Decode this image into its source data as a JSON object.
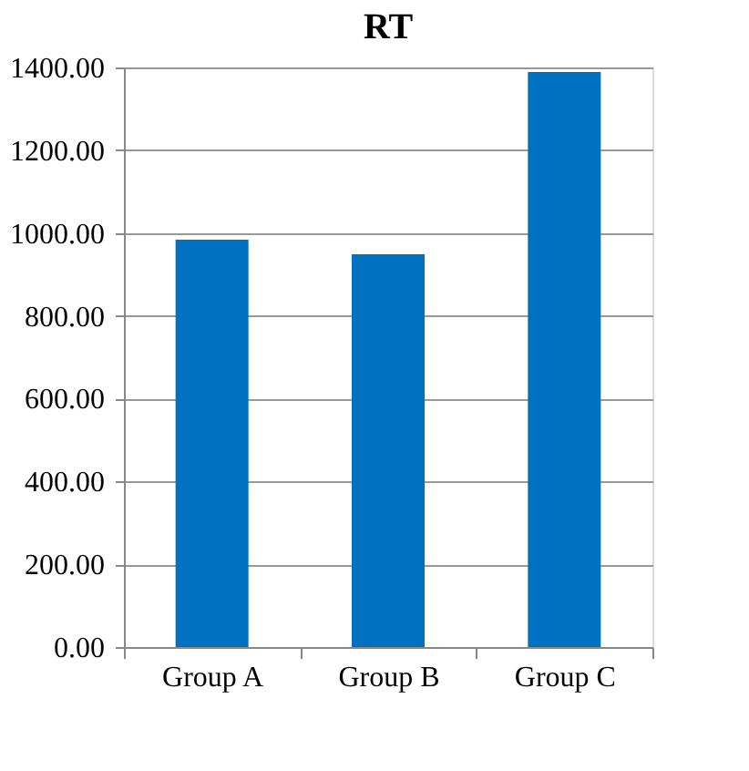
{
  "chart_data": {
    "type": "bar",
    "title": "RT",
    "categories": [
      "Group A",
      "Group B",
      "Group C"
    ],
    "values": [
      984,
      949,
      1389
    ],
    "color": "#0070c0",
    "ylim": [
      0,
      1400
    ],
    "yticks": [
      {
        "value": 0,
        "label": "0.00"
      },
      {
        "value": 200,
        "label": "200.00"
      },
      {
        "value": 400,
        "label": "400.00"
      },
      {
        "value": 600,
        "label": "600.00"
      },
      {
        "value": 800,
        "label": "800.00"
      },
      {
        "value": 1000,
        "label": "1000.00"
      },
      {
        "value": 1200,
        "label": "1200.00"
      },
      {
        "value": 1400,
        "label": "1400.00"
      }
    ],
    "grid": "y"
  }
}
